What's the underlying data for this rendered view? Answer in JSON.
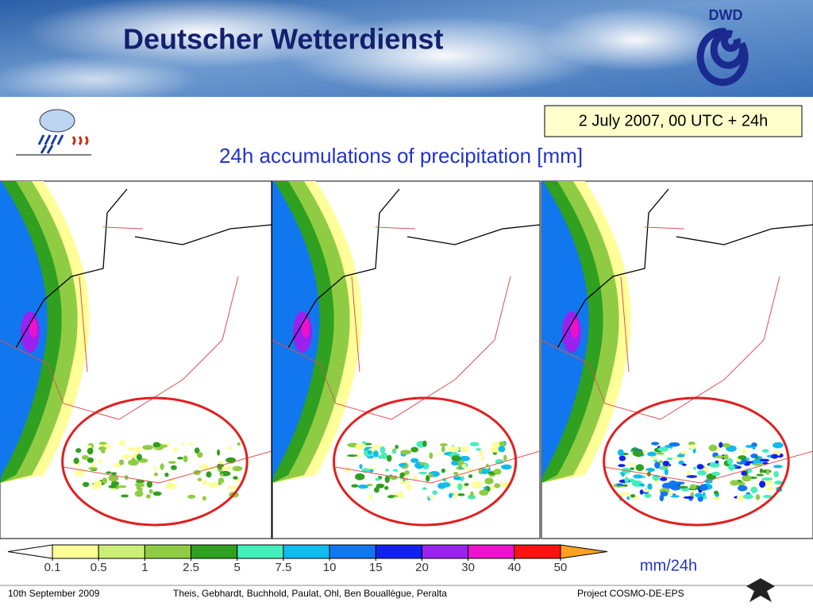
{
  "header": {
    "title": "Deutscher Wetterdienst",
    "logo_text": "DWD"
  },
  "date_box": "2 July 2007, 00 UTC + 24h",
  "subtitle": "24h accumulations of precipitation [mm]",
  "colorbar": {
    "ticks": [
      0.1,
      0.5,
      1,
      2.5,
      5,
      7.5,
      10,
      15,
      20,
      30,
      40,
      50
    ],
    "colors": [
      "#ffff99",
      "#ccee77",
      "#8fcc44",
      "#2fa020",
      "#44eebb",
      "#11bbee",
      "#1177ee",
      "#1122ee",
      "#9922ee",
      "#ee11cc",
      "#ff1111"
    ],
    "under_color": "#ffffff",
    "over_color": "#ffa022",
    "unit": "mm/24h"
  },
  "footer": {
    "date": "10th September 2009",
    "authors": "Theis, Gebhardt, Buchhold, Paulat, Ohl, Ben Bouallègue, Peralta",
    "project": "Project COSMO-DE-EPS"
  }
}
